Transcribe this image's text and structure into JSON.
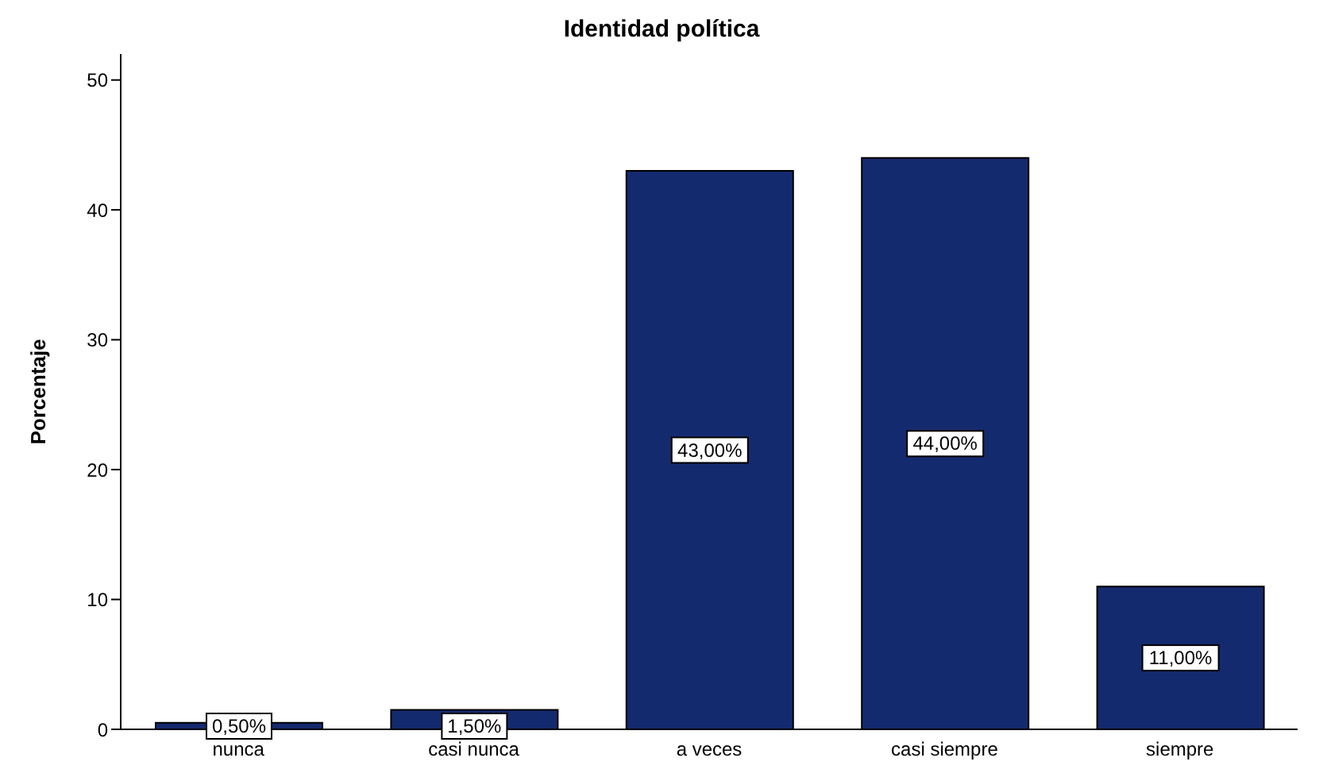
{
  "chart_data": {
    "type": "bar",
    "title": "Identidad política",
    "ylabel": "Porcentaje",
    "categories": [
      "nunca",
      "casi nunca",
      "a veces",
      "casi siempre",
      "siempre"
    ],
    "values": [
      0.5,
      1.5,
      43,
      44,
      11
    ],
    "value_labels": [
      "0,50%",
      "1,50%",
      "43,00%",
      "44,00%",
      "11,00%"
    ],
    "color": "#142a6e",
    "ylim": [
      0,
      52
    ],
    "yticks": [
      0,
      10,
      20,
      30,
      40,
      50
    ],
    "grid": false,
    "legend": false
  }
}
